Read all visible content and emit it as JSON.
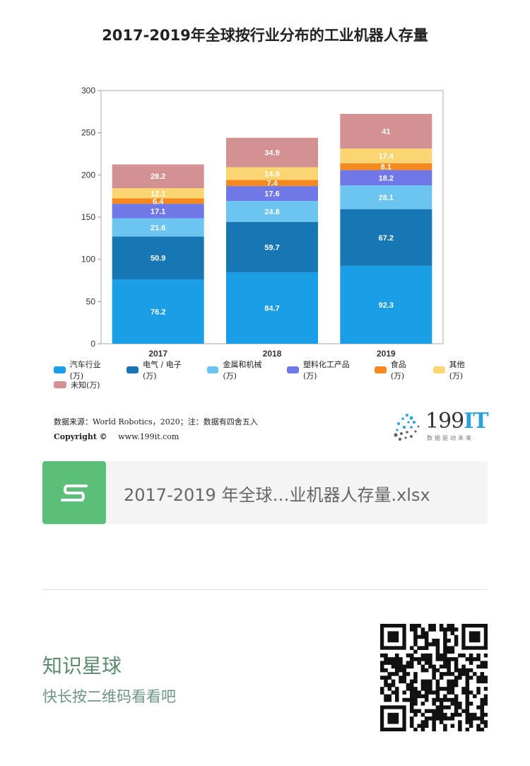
{
  "chart_data": {
    "type": "bar",
    "stacked": true,
    "title": "2017-2019年全球按行业分布的工业机器人存量",
    "categories": [
      "2017",
      "2018",
      "2019"
    ],
    "ylim": [
      0,
      300
    ],
    "yticks": [
      0,
      50,
      100,
      150,
      200,
      250,
      300
    ],
    "grid": false,
    "legend_position": "bottom",
    "series": [
      {
        "name": "汽车行业(万)",
        "color": "#1a9ee6",
        "values": [
          76.2,
          84.7,
          92.3
        ],
        "labels": [
          "76.2",
          "84.7",
          "92.3"
        ]
      },
      {
        "name": "电气 / 电子(万)",
        "color": "#1677b4",
        "values": [
          50.9,
          59.7,
          67.2
        ],
        "labels": [
          "50.9",
          "59.7",
          "67.2"
        ]
      },
      {
        "name": "金属和机械(万)",
        "color": "#6bc5f0",
        "values": [
          21.6,
          24.8,
          28.1
        ],
        "labels": [
          "21.6",
          "24.8",
          "28.1"
        ]
      },
      {
        "name": "塑料化工产品(万)",
        "color": "#6f78e6",
        "values": [
          17.1,
          17.6,
          18.2
        ],
        "labels": [
          "17.1",
          "17.6",
          "18.2"
        ]
      },
      {
        "name": "食品(万)",
        "color": "#f5881f",
        "values": [
          6.4,
          7.4,
          8.1
        ],
        "labels": [
          "6.4",
          "7.4",
          "8.1"
        ]
      },
      {
        "name": "其他(万)",
        "color": "#fbd571",
        "values": [
          12.1,
          14.9,
          17.4
        ],
        "labels": [
          "12.1",
          "14.9",
          "17.4"
        ]
      },
      {
        "name": "未知(万)",
        "color": "#d49193",
        "values": [
          28.2,
          34.9,
          41
        ],
        "labels": [
          "28.2",
          "34.9",
          "41"
        ]
      }
    ]
  },
  "source": {
    "line": "数据来源：World Robotics，2020；注：数据有四舍五入",
    "copyright_label": "Copyright ©",
    "copyright_url": "www.199it.com"
  },
  "logo": {
    "text_num": "199",
    "text_it": "IT",
    "tagline": "数据驱动未来"
  },
  "file_card": {
    "icon_letter": "S",
    "file_name": "2017-2019 年全球…业机器人存量.xlsx"
  },
  "promo": {
    "title": "知识星球",
    "subtitle": "快长按二维码看看吧"
  }
}
